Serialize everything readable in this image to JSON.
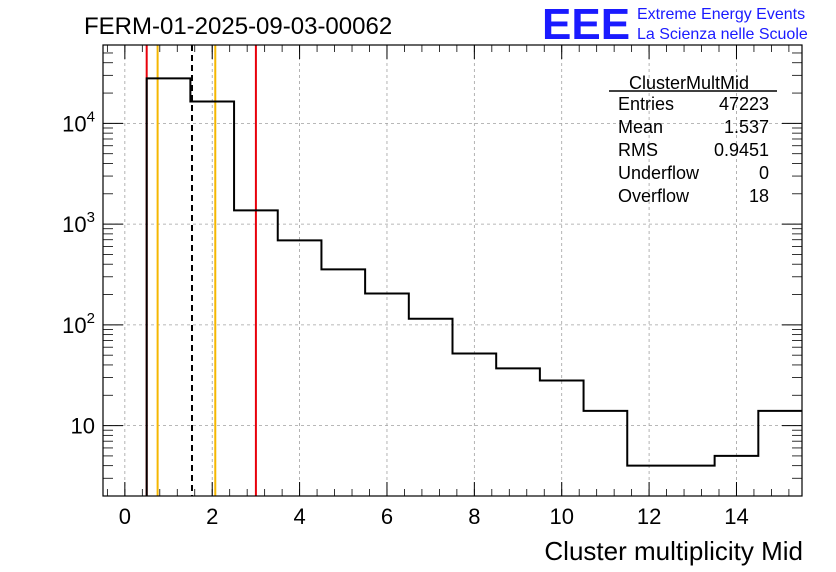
{
  "chart_data": {
    "type": "histogram",
    "title": "FERM-01-2025-09-03-00062",
    "xlabel": "Cluster multiplicity Mid",
    "ylabel": "",
    "xlim": [
      -0.5,
      15.5
    ],
    "ylim": [
      2,
      60000
    ],
    "yscale": "log",
    "grid": true,
    "bin_width": 1,
    "bin_low_edges": [
      0.5,
      1.5,
      2.5,
      3.5,
      4.5,
      5.5,
      6.5,
      7.5,
      8.5,
      9.5,
      10.5,
      11.5,
      12.5,
      13.5,
      14.5
    ],
    "values": [
      28000,
      16500,
      1370,
      690,
      355,
      205,
      115,
      52,
      37,
      28,
      14,
      4,
      4,
      5,
      14
    ],
    "x_ticks": [
      "0",
      "2",
      "4",
      "6",
      "8",
      "10",
      "12",
      "14"
    ],
    "x_tick_values": [
      0,
      2,
      4,
      6,
      8,
      10,
      12,
      14
    ],
    "y_ticks": [
      {
        "value": 10,
        "base": "10",
        "exp": ""
      },
      {
        "value": 100,
        "base": "10",
        "exp": "2"
      },
      {
        "value": 1000,
        "base": "10",
        "exp": "3"
      },
      {
        "value": 10000,
        "base": "10",
        "exp": "4"
      }
    ],
    "markers": [
      {
        "x": 0.5,
        "color": "#e8000b",
        "style": "solid"
      },
      {
        "x": 0.75,
        "color": "#f5b700",
        "style": "solid"
      },
      {
        "x": 1.537,
        "color": "#000000",
        "style": "dashed"
      },
      {
        "x": 2.07,
        "color": "#f5b700",
        "style": "solid"
      },
      {
        "x": 3.0,
        "color": "#e8000b",
        "style": "solid"
      }
    ],
    "stats": {
      "title": "ClusterMultMid",
      "rows": [
        {
          "label": "Entries",
          "value": "47223"
        },
        {
          "label": "Mean",
          "value": "1.537"
        },
        {
          "label": "RMS",
          "value": "0.9451"
        },
        {
          "label": "Underflow",
          "value": "0"
        },
        {
          "label": "Overflow",
          "value": "18"
        }
      ]
    }
  },
  "logo": {
    "mark": "EEE",
    "line1": "Extreme Energy Events",
    "line2": "La Scienza nelle Scuole",
    "color": "#1a1aff"
  }
}
